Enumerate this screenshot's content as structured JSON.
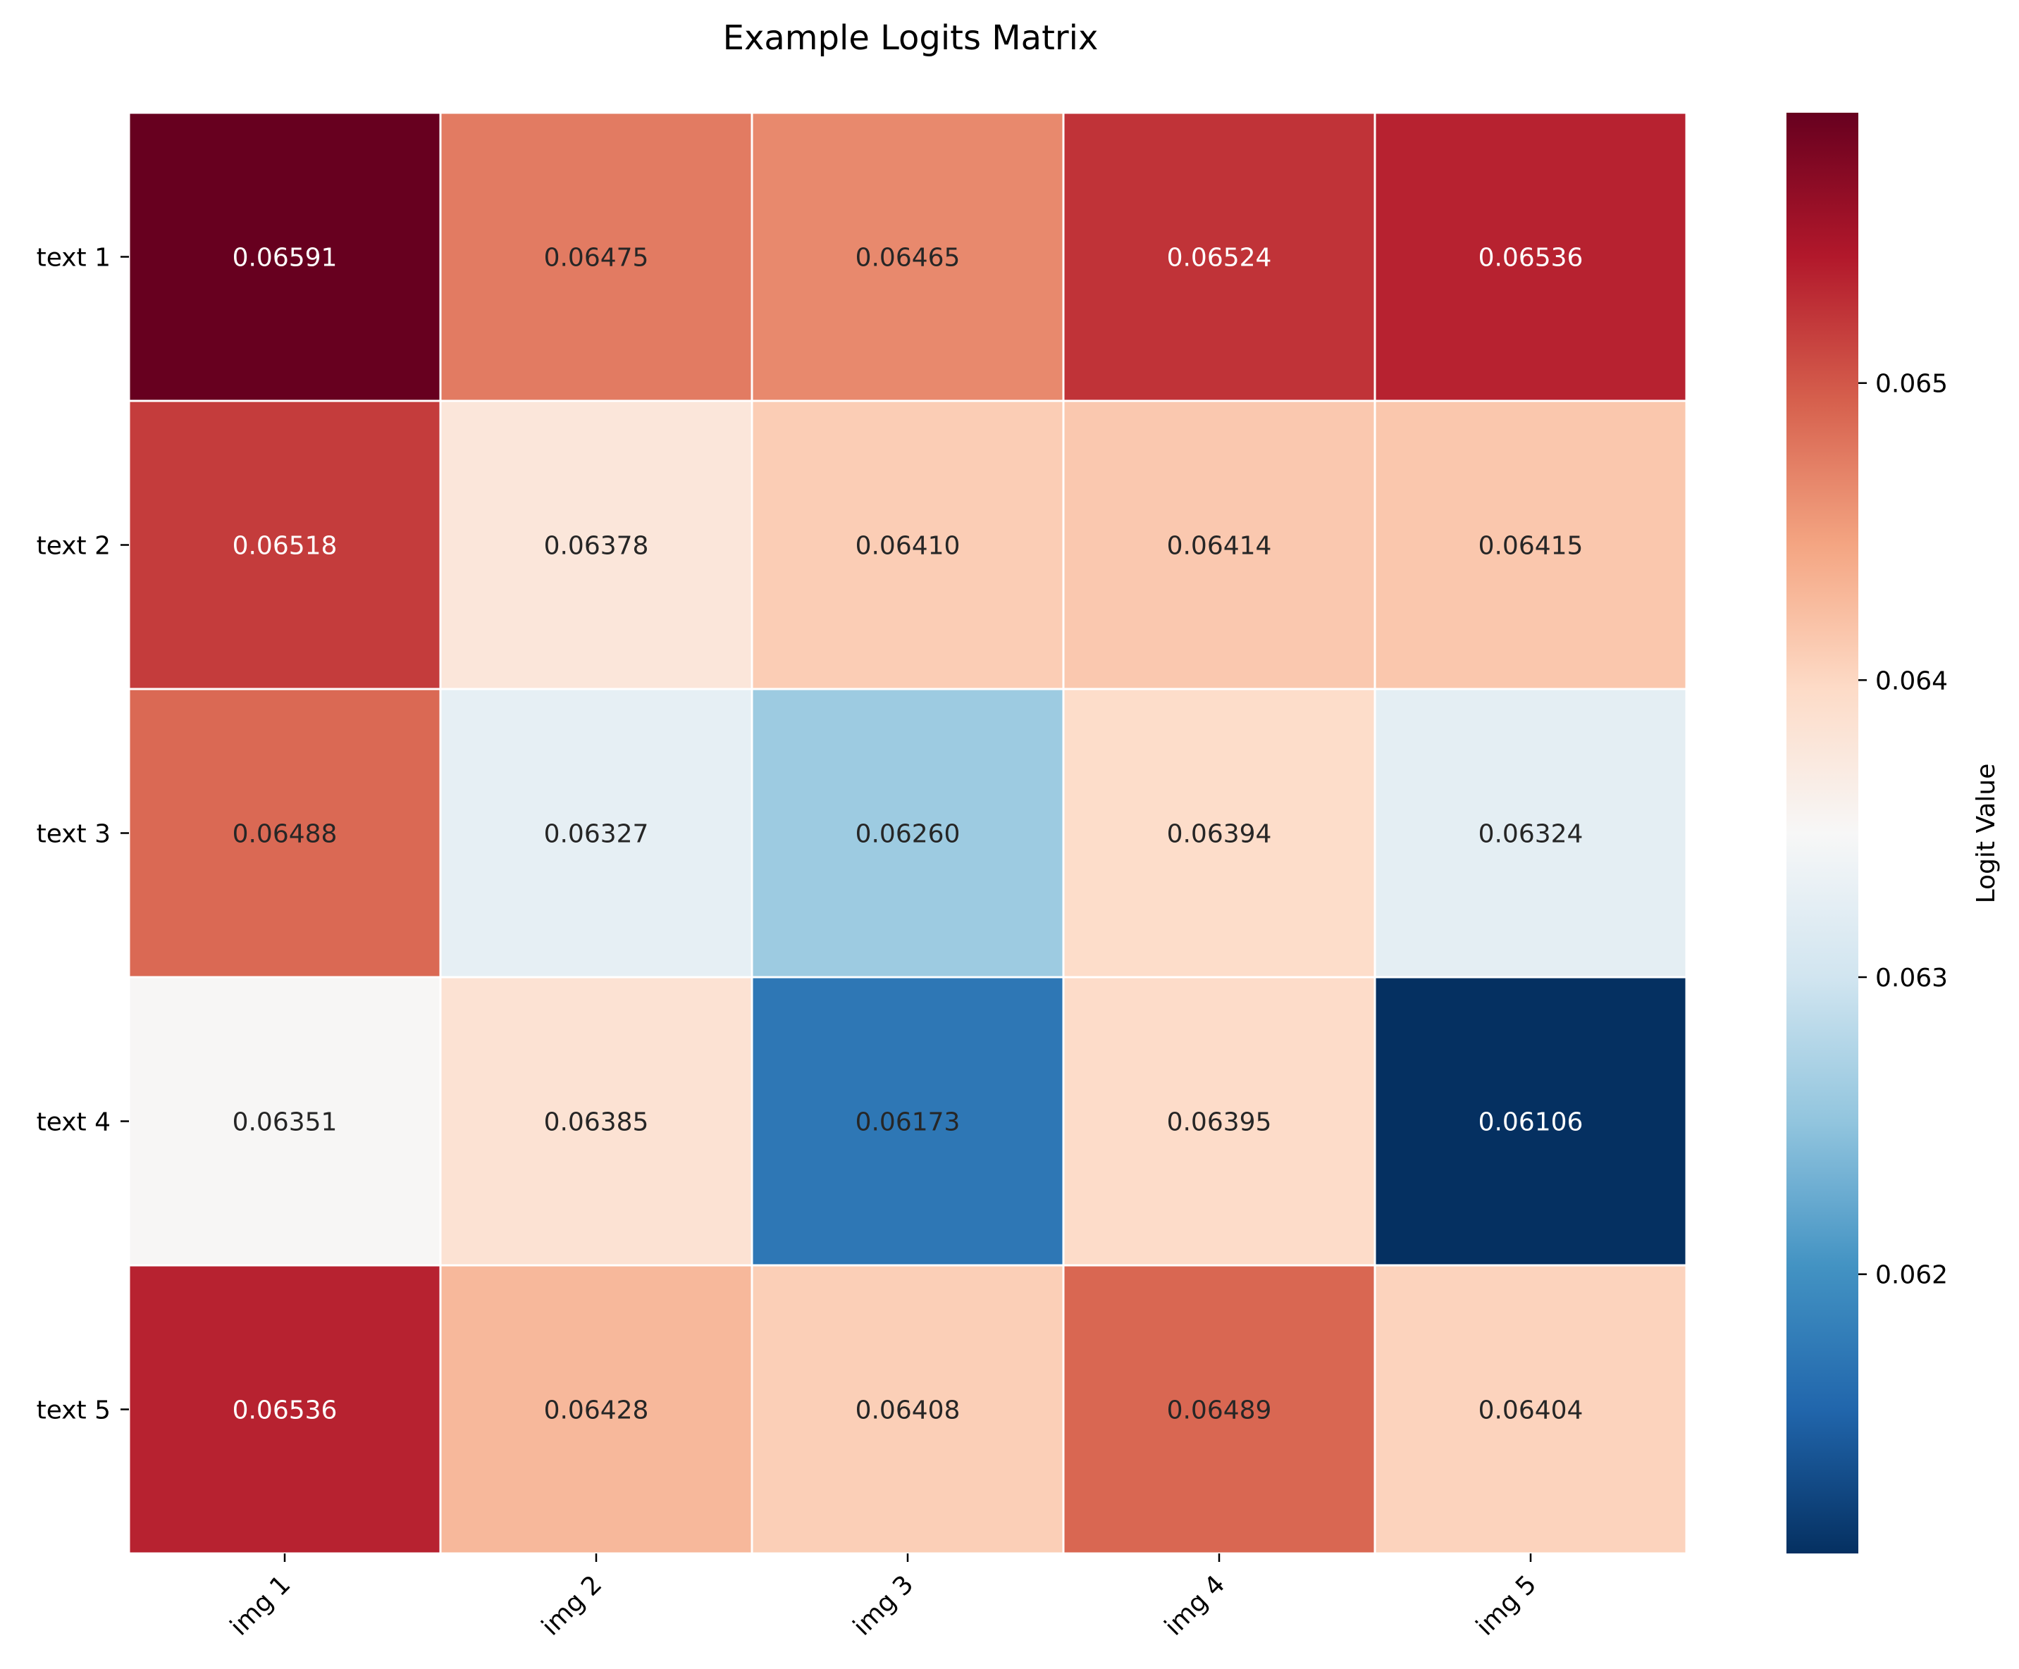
{
  "chart_data": {
    "type": "heatmap",
    "title": "Example Logits Matrix",
    "x_categories": [
      "img 1",
      "img 2",
      "img 3",
      "img 4",
      "img 5"
    ],
    "y_categories": [
      "text 1",
      "text 2",
      "text 3",
      "text 4",
      "text 5"
    ],
    "values": [
      [
        0.06591,
        0.06475,
        0.06465,
        0.06524,
        0.06536
      ],
      [
        0.06518,
        0.06378,
        0.0641,
        0.06414,
        0.06415
      ],
      [
        0.06488,
        0.06327,
        0.0626,
        0.06394,
        0.06324
      ],
      [
        0.06351,
        0.06385,
        0.06173,
        0.06395,
        0.06106
      ],
      [
        0.06536,
        0.06428,
        0.06408,
        0.06489,
        0.06404
      ]
    ],
    "value_format": "0.00000",
    "colormap": "RdBu_r",
    "color_range": [
      0.06106,
      0.06591
    ],
    "colorbar": {
      "label": "Logit Value",
      "ticks": [
        0.062,
        0.063,
        0.064,
        0.065
      ],
      "tick_labels": [
        "0.062",
        "0.063",
        "0.064",
        "0.065"
      ]
    },
    "cell_border_color": "#ffffff",
    "annotation_colors": {
      "light": "#ffffff",
      "dark": "#262626"
    }
  }
}
